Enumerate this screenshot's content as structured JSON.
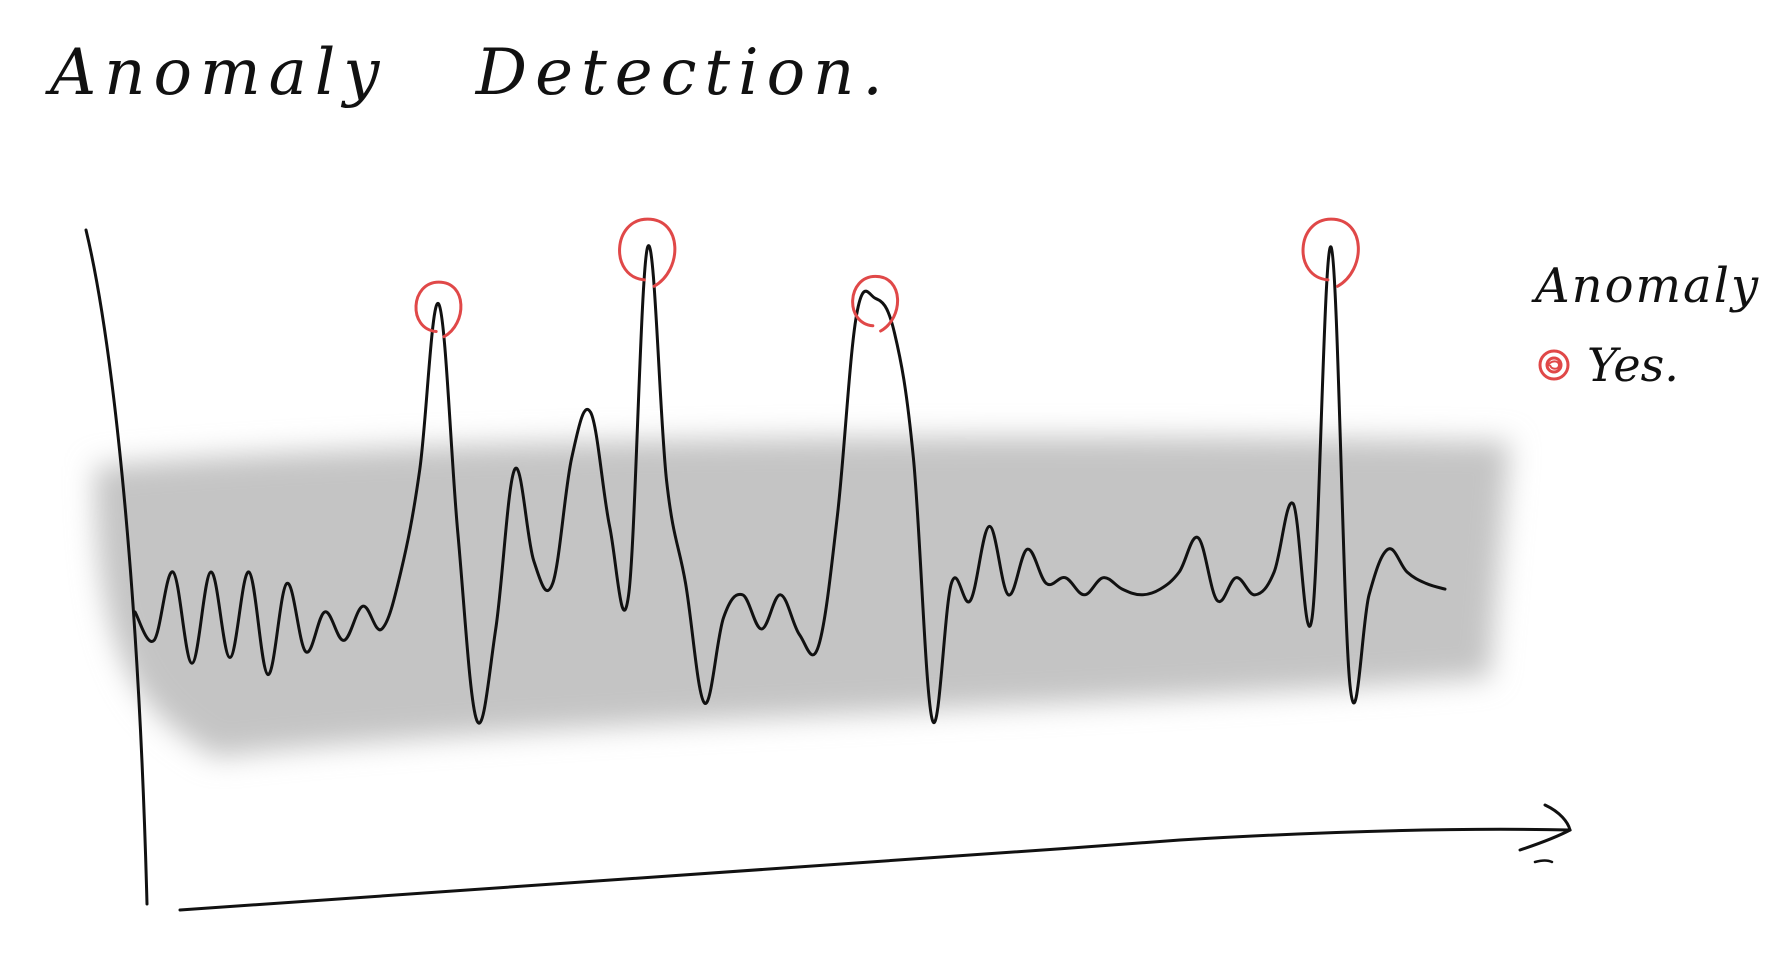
{
  "title": "Anomaly Detection.",
  "legend": {
    "title": "Anomaly",
    "items": [
      {
        "label": "Yes.",
        "color": "#e04848"
      }
    ]
  },
  "colors": {
    "line": "#111111",
    "band": "#c4c4c4",
    "anomaly": "#e04848"
  },
  "chart_data": {
    "type": "line",
    "title": "Anomaly Detection.",
    "xlabel": "",
    "ylabel": "",
    "grid": false,
    "legend_position": "right",
    "normal_band": {
      "low": 18,
      "high": 62
    },
    "series": [
      {
        "values": [
          33,
          28,
          40,
          24,
          40,
          25,
          40,
          22,
          38,
          26,
          33,
          28,
          34,
          30,
          40,
          58,
          87,
          47,
          14,
          30,
          58,
          42,
          38,
          60,
          68,
          48,
          36,
          97,
          56,
          38,
          17,
          32,
          36,
          30,
          36,
          29,
          27,
          50,
          85,
          88,
          82,
          60,
          14,
          38,
          35,
          48,
          36,
          44,
          38,
          39,
          36,
          39,
          37,
          36,
          37,
          40,
          46,
          35,
          39,
          36,
          40,
          52,
          32,
          97,
          20,
          36,
          44,
          40,
          38,
          37
        ]
      }
    ],
    "anomalies": [
      {
        "index": 16,
        "value": 87,
        "label": "Yes."
      },
      {
        "index": 27,
        "value": 97,
        "label": "Yes."
      },
      {
        "index": 39,
        "value": 88,
        "label": "Yes."
      },
      {
        "index": 63,
        "value": 97,
        "label": "Yes."
      }
    ],
    "ylim": [
      0,
      100
    ]
  }
}
